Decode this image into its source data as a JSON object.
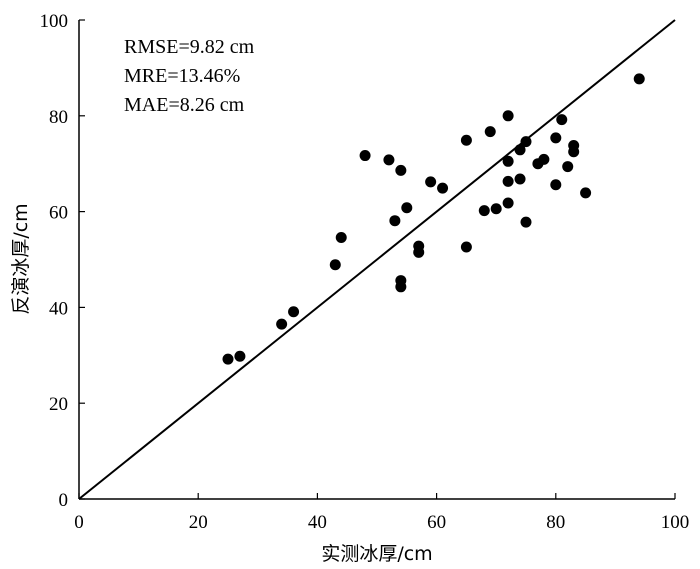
{
  "chart_data": {
    "type": "scatter",
    "xlabel": "实测冰厚/cm",
    "ylabel": "反演冰厚/cm",
    "xlim": [
      0,
      100
    ],
    "ylim": [
      0,
      100
    ],
    "xticks": [
      0,
      20,
      40,
      60,
      80,
      100
    ],
    "yticks": [
      0,
      20,
      40,
      60,
      80,
      100
    ],
    "reference_line": {
      "type": "1:1",
      "from": [
        0,
        0
      ],
      "to": [
        100,
        100
      ]
    },
    "annotations": [
      "RMSE=9.82 cm",
      "MRE=13.46%",
      "MAE=8.26 cm"
    ],
    "grid": false,
    "points": [
      {
        "x": 25,
        "y": 29.2
      },
      {
        "x": 27,
        "y": 29.8
      },
      {
        "x": 34,
        "y": 36.5
      },
      {
        "x": 36,
        "y": 39.1
      },
      {
        "x": 43,
        "y": 48.9
      },
      {
        "x": 44,
        "y": 54.6
      },
      {
        "x": 48,
        "y": 71.7
      },
      {
        "x": 52,
        "y": 70.8
      },
      {
        "x": 53,
        "y": 58.1
      },
      {
        "x": 54,
        "y": 68.6
      },
      {
        "x": 54,
        "y": 45.6
      },
      {
        "x": 54,
        "y": 44.3
      },
      {
        "x": 55,
        "y": 60.8
      },
      {
        "x": 57,
        "y": 52.8
      },
      {
        "x": 57,
        "y": 51.5
      },
      {
        "x": 59,
        "y": 66.2
      },
      {
        "x": 61,
        "y": 64.9
      },
      {
        "x": 65,
        "y": 74.9
      },
      {
        "x": 65,
        "y": 52.6
      },
      {
        "x": 68,
        "y": 60.2
      },
      {
        "x": 69,
        "y": 76.7
      },
      {
        "x": 70,
        "y": 60.6
      },
      {
        "x": 72,
        "y": 80.0
      },
      {
        "x": 72,
        "y": 70.5
      },
      {
        "x": 72,
        "y": 66.3
      },
      {
        "x": 72,
        "y": 61.8
      },
      {
        "x": 74,
        "y": 72.9
      },
      {
        "x": 74,
        "y": 66.8
      },
      {
        "x": 75,
        "y": 74.6
      },
      {
        "x": 75,
        "y": 57.8
      },
      {
        "x": 77,
        "y": 70.0
      },
      {
        "x": 78,
        "y": 70.9
      },
      {
        "x": 80,
        "y": 75.4
      },
      {
        "x": 80,
        "y": 65.6
      },
      {
        "x": 81,
        "y": 79.2
      },
      {
        "x": 82,
        "y": 69.4
      },
      {
        "x": 83,
        "y": 73.8
      },
      {
        "x": 83,
        "y": 72.5
      },
      {
        "x": 85,
        "y": 63.9
      },
      {
        "x": 94,
        "y": 87.7
      }
    ]
  }
}
